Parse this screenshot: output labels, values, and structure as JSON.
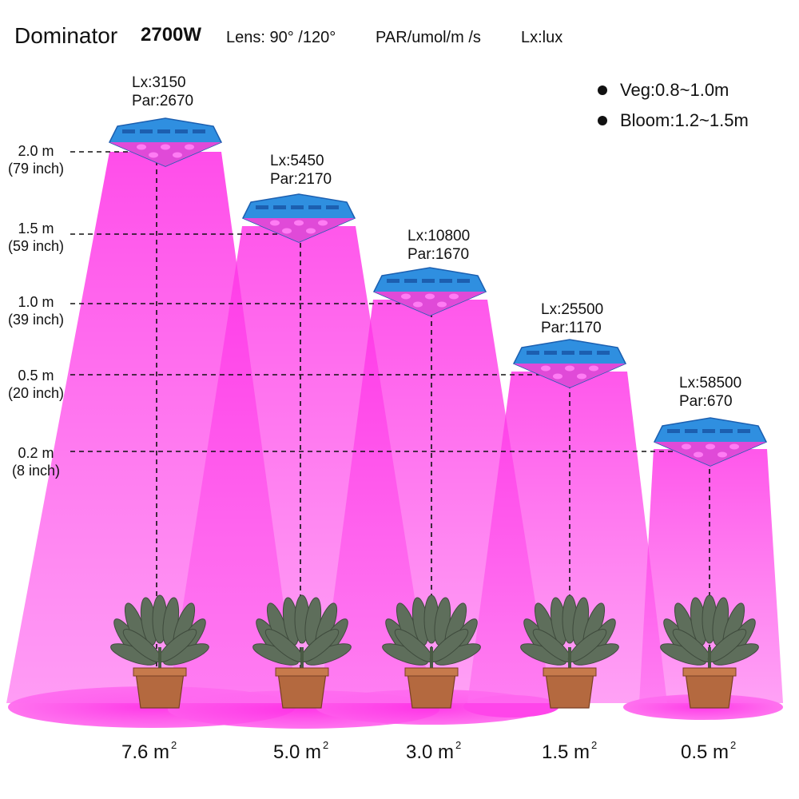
{
  "header": {
    "brand": "Dominator",
    "wattage": "2700W",
    "lens": "Lens:  90°  /120°",
    "par_unit": "PAR/umol/m  /s",
    "lux_unit": "Lx:lux"
  },
  "legend": [
    {
      "label": "Veg:0.8~1.0m"
    },
    {
      "label": "Bloom:1.2~1.5m"
    }
  ],
  "heights": [
    {
      "m": "2.0 m",
      "inch": "(79 inch)"
    },
    {
      "m": "1.5 m",
      "inch": "(59 inch)"
    },
    {
      "m": "1.0 m",
      "inch": "(39 inch)"
    },
    {
      "m": "0.5 m",
      "inch": "(20 inch)"
    },
    {
      "m": "0.2 m",
      "inch": "(8 inch)"
    }
  ],
  "measurements": [
    {
      "lx": "Lx:3150",
      "par": "Par:2670",
      "area": "7.6 m",
      "area_sup": "2"
    },
    {
      "lx": "Lx:5450",
      "par": "Par:2170",
      "area": "5.0 m",
      "area_sup": "2"
    },
    {
      "lx": "Lx:10800",
      "par": "Par:1670",
      "area": "3.0 m",
      "area_sup": "2"
    },
    {
      "lx": "Lx:25500",
      "par": "Par:1170",
      "area": "1.5 m",
      "area_sup": "2"
    },
    {
      "lx": "Lx:58500",
      "par": "Par:670",
      "area": "0.5 m",
      "area_sup": "2"
    }
  ],
  "colors": {
    "light_beam": "#ff3ee8",
    "light_beam_soft": "#ffb3f5",
    "panel": "#2f8fe0",
    "panel_dark": "#1c5fb0",
    "leaf": "#5e6e5b",
    "pot": "#b4693f"
  }
}
